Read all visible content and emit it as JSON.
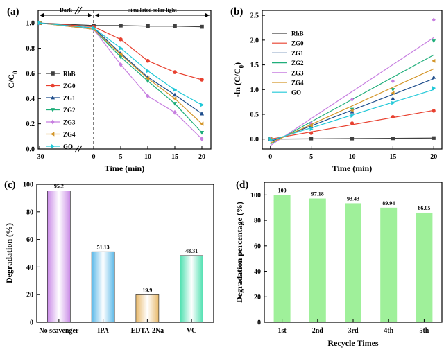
{
  "figure": {
    "caption": ""
  },
  "chart_data": [
    {
      "panel": "(a)",
      "type": "line",
      "x": [
        -30,
        0,
        5,
        10,
        15,
        20
      ],
      "x_tick_labels": [
        "-30",
        "0",
        "5",
        "10",
        "15",
        "20"
      ],
      "xlabel": "Time (min)",
      "ylabel": "C/C0",
      "ylim": [
        0.0,
        1.1
      ],
      "y_ticks": [
        0.0,
        0.2,
        0.4,
        0.6,
        0.8,
        1.0
      ],
      "y_tick_labels": [
        "0.0",
        "0.2",
        "0.4",
        "0.6",
        "0.8",
        "1.0"
      ],
      "region_labels": {
        "dark": "Dark",
        "light": "simulated solar light"
      },
      "legend_position": "left",
      "series": [
        {
          "name": "RhB",
          "color": "#404040",
          "marker": "square",
          "values": [
            1.0,
            0.98,
            0.98,
            0.975,
            0.975,
            0.97
          ]
        },
        {
          "name": "ZG0",
          "color": "#e8402f",
          "marker": "circle",
          "values": [
            1.0,
            0.97,
            0.87,
            0.7,
            0.61,
            0.55
          ]
        },
        {
          "name": "ZG1",
          "color": "#1f4e8c",
          "marker": "triangle-up",
          "values": [
            1.0,
            0.96,
            0.76,
            0.57,
            0.43,
            0.28
          ]
        },
        {
          "name": "ZG2",
          "color": "#1fae7a",
          "marker": "triangle-down",
          "values": [
            1.0,
            0.95,
            0.73,
            0.54,
            0.36,
            0.13
          ]
        },
        {
          "name": "ZG3",
          "color": "#c77fe0",
          "marker": "diamond",
          "values": [
            1.0,
            0.95,
            0.67,
            0.42,
            0.29,
            0.08
          ]
        },
        {
          "name": "ZG4",
          "color": "#d4962a",
          "marker": "triangle-left",
          "values": [
            1.0,
            0.95,
            0.75,
            0.56,
            0.4,
            0.2
          ]
        },
        {
          "name": "GO",
          "color": "#20c8d8",
          "marker": "triangle-right",
          "values": [
            1.0,
            0.96,
            0.8,
            0.62,
            0.47,
            0.35
          ]
        }
      ]
    },
    {
      "panel": "(b)",
      "type": "scatter",
      "x": [
        0,
        5,
        10,
        15,
        20
      ],
      "x_tick_labels": [
        "0",
        "5",
        "10",
        "15",
        "20"
      ],
      "xlabel": "Time (min)",
      "ylabel": "-ln (C/C0)",
      "xlim": [
        -1,
        21
      ],
      "ylim": [
        -0.2,
        2.6
      ],
      "y_ticks": [
        0.0,
        0.5,
        1.0,
        1.5,
        2.0,
        2.5
      ],
      "y_tick_labels": [
        "0.0",
        "0.5",
        "1.0",
        "1.5",
        "2.0",
        "2.5"
      ],
      "legend_position": "top-left",
      "series": [
        {
          "name": "RhB",
          "color": "#404040",
          "marker": "square",
          "values": [
            0.0,
            0.01,
            0.01,
            0.015,
            0.02
          ],
          "fit": [
            0.0,
            0.02
          ]
        },
        {
          "name": "ZG0",
          "color": "#e8402f",
          "marker": "circle",
          "values": [
            0.0,
            0.12,
            0.32,
            0.45,
            0.57
          ],
          "fit": [
            0.0,
            0.58
          ]
        },
        {
          "name": "ZG1",
          "color": "#1f4e8c",
          "marker": "triangle-up",
          "values": [
            0.0,
            0.25,
            0.55,
            0.82,
            1.25
          ],
          "fit": [
            -0.05,
            1.22
          ]
        },
        {
          "name": "ZG2",
          "color": "#1fae7a",
          "marker": "triangle-down",
          "values": [
            0.0,
            0.28,
            0.6,
            1.0,
            1.98
          ],
          "fit": [
            -0.1,
            1.7
          ]
        },
        {
          "name": "ZG3",
          "color": "#c77fe0",
          "marker": "diamond",
          "values": [
            0.0,
            0.32,
            0.8,
            1.17,
            2.41
          ],
          "fit": [
            -0.13,
            2.05
          ]
        },
        {
          "name": "ZG4",
          "color": "#d4962a",
          "marker": "triangle-left",
          "values": [
            0.0,
            0.27,
            0.58,
            0.93,
            1.58
          ],
          "fit": [
            -0.08,
            1.42
          ]
        },
        {
          "name": "GO",
          "color": "#20c8d8",
          "marker": "triangle-right",
          "values": [
            0.0,
            0.2,
            0.47,
            0.73,
            1.03
          ],
          "fit": [
            -0.03,
            1.0
          ]
        }
      ]
    },
    {
      "panel": "(c)",
      "type": "bar",
      "categories": [
        "No scavenger",
        "IPA",
        "EDTA-2Na",
        "VC"
      ],
      "values": [
        95.2,
        51.13,
        19.9,
        48.31
      ],
      "value_labels": [
        "95.2",
        "51.13",
        "19.9",
        "48.31"
      ],
      "colors": [
        "#c98ae6",
        "#5ab8e8",
        "#e8b96a",
        "#4fe0b0"
      ],
      "xlabel": "",
      "ylabel": "Degradation (%)",
      "ylim": [
        0,
        100
      ],
      "y_ticks": [
        0,
        20,
        40,
        60,
        80,
        100
      ],
      "y_tick_labels": [
        "0",
        "20",
        "40",
        "60",
        "80",
        "100"
      ]
    },
    {
      "panel": "(d)",
      "type": "bar",
      "categories": [
        "1st",
        "2nd",
        "3rd",
        "4th",
        "5th"
      ],
      "values": [
        100,
        97.18,
        93.43,
        89.94,
        86.05
      ],
      "value_labels": [
        "100",
        "97.18",
        "93.43",
        "89.94",
        "86.05"
      ],
      "color": "#9ff09a",
      "xlabel": "Recycle Times",
      "ylabel": "Degradation percentage (%)",
      "ylim": [
        0,
        110
      ],
      "y_ticks": [
        0,
        20,
        40,
        60,
        80,
        100
      ],
      "y_tick_labels": [
        "0",
        "20",
        "40",
        "60",
        "80",
        "100"
      ]
    }
  ]
}
